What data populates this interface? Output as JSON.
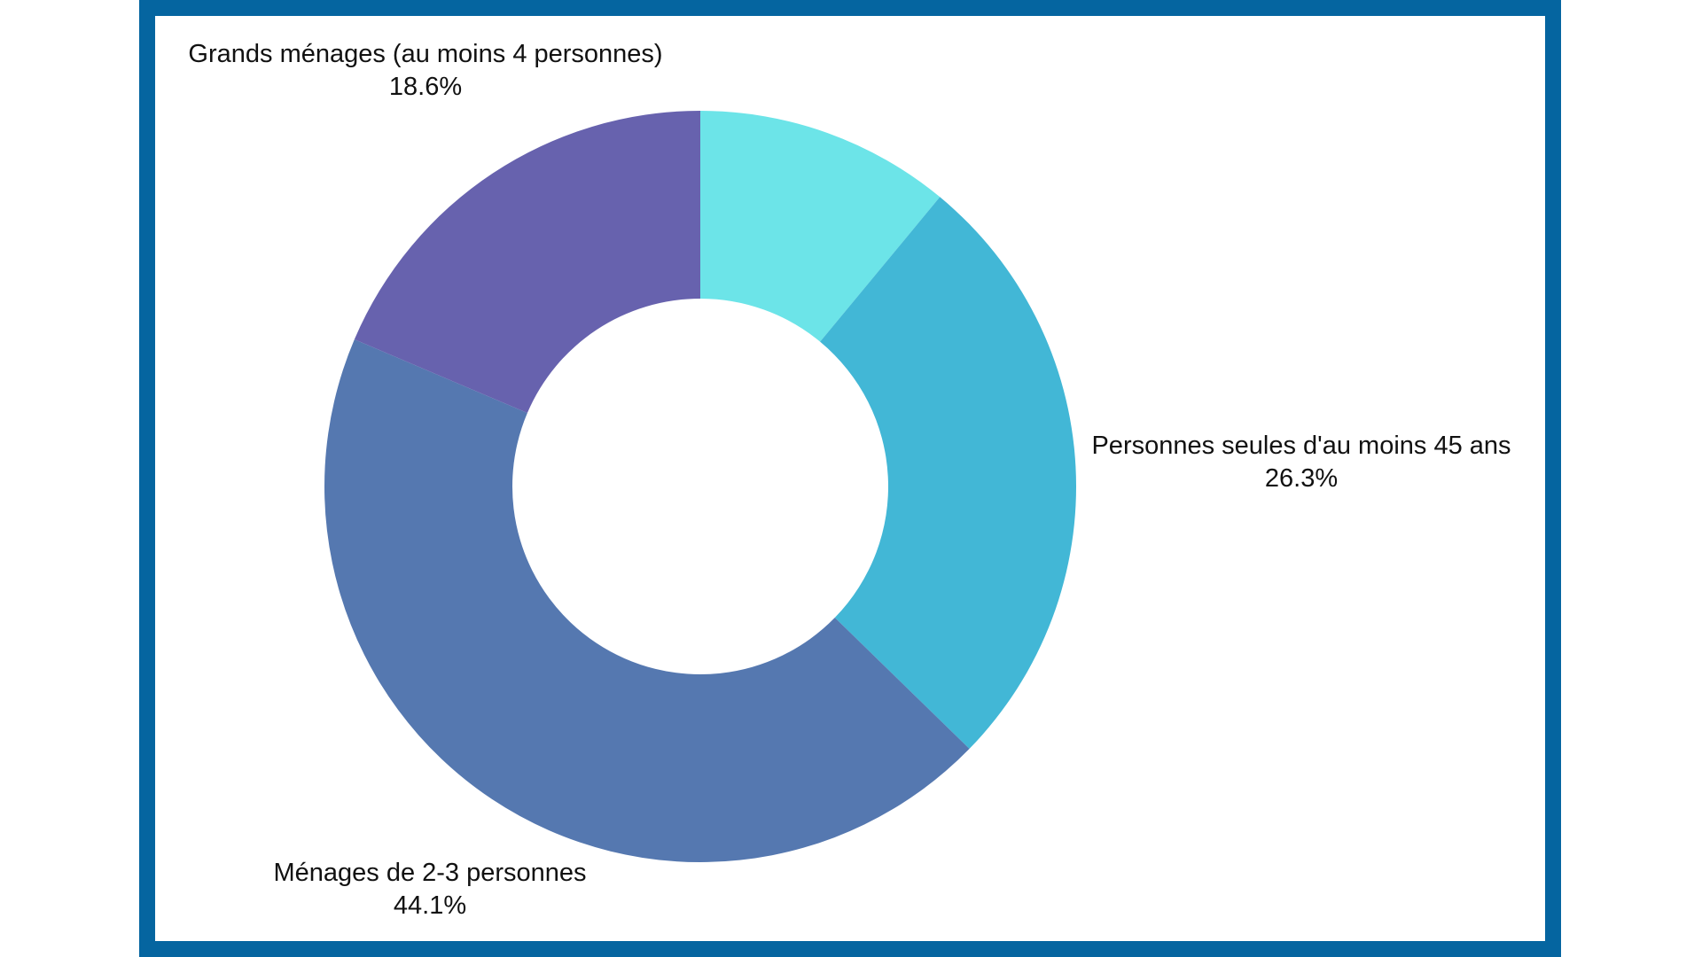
{
  "chart_data": {
    "type": "pie",
    "title": "",
    "donut": true,
    "slices": [
      {
        "label": "",
        "value": 11.0,
        "display": "",
        "color": "#6ce4e8"
      },
      {
        "label": "Personnes seules d'au moins 45 ans",
        "value": 26.3,
        "display": "26.3%",
        "color": "#42b7d6"
      },
      {
        "label": "Ménages de 2-3 personnes",
        "value": 44.1,
        "display": "44.1%",
        "color": "#5578b0"
      },
      {
        "label": "Grands ménages (au moins 4 personnes)",
        "value": 18.6,
        "display": "18.6%",
        "color": "#6762ae"
      }
    ],
    "legend": "none"
  },
  "labels": {
    "slice1": {
      "name": "Personnes seules d'au moins 45 ans",
      "value": "26.3%"
    },
    "slice2": {
      "name": "Ménages de 2-3 personnes",
      "value": "44.1%"
    },
    "slice3": {
      "name": "Grands ménages (au moins 4 personnes)",
      "value": "18.6%"
    }
  },
  "colors": {
    "frame": "#0565a0",
    "background": "#ffffff"
  }
}
